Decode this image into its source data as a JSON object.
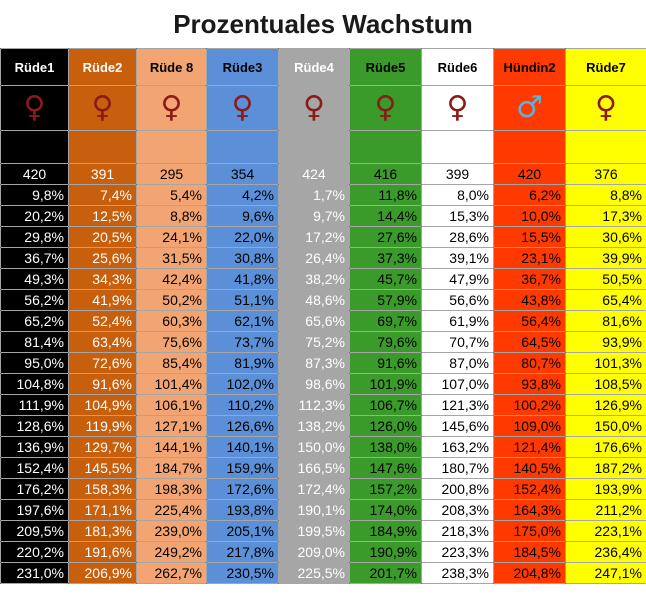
{
  "title": "Prozentuales Wachstum",
  "columns": [
    {
      "name": "Rüde1",
      "symbol": "♀",
      "symbol_icon": "female-symbol-icon",
      "base": "420",
      "bg": "#000000",
      "fg": "#ffffff",
      "symbol_color": "#8b1a1a"
    },
    {
      "name": "Rüde2",
      "symbol": "♀",
      "symbol_icon": "female-symbol-icon",
      "base": "391",
      "bg": "#c75f0c",
      "fg": "#ffffff",
      "symbol_color": "#8b1a1a"
    },
    {
      "name": "Rüde 8",
      "symbol": "♀",
      "symbol_icon": "female-symbol-icon",
      "base": "295",
      "bg": "#f3a473",
      "fg": "#000000",
      "symbol_color": "#8b1a1a"
    },
    {
      "name": "Rüde3",
      "symbol": "♀",
      "symbol_icon": "female-symbol-icon",
      "base": "354",
      "bg": "#5b8fd8",
      "fg": "#000000",
      "symbol_color": "#8b1a1a"
    },
    {
      "name": "Rüde4",
      "symbol": "♀",
      "symbol_icon": "female-symbol-icon",
      "base": "424",
      "bg": "#a6a6a6",
      "fg": "#ffffff",
      "symbol_color": "#8b1a1a"
    },
    {
      "name": "Rüde5",
      "symbol": "♀",
      "symbol_icon": "female-symbol-icon",
      "base": "416",
      "bg": "#3a9a2a",
      "fg": "#000000",
      "symbol_color": "#8b1a1a"
    },
    {
      "name": "Rüde6",
      "symbol": "♀",
      "symbol_icon": "female-symbol-icon",
      "base": "399",
      "bg": "#ffffff",
      "fg": "#000000",
      "symbol_color": "#8b1a1a"
    },
    {
      "name": "Hündin2",
      "symbol": "♂",
      "symbol_icon": "male-symbol-icon",
      "base": "420",
      "bg": "#ff3a00",
      "fg": "#000000",
      "symbol_color": "#5ab4d8"
    },
    {
      "name": "Rüde7",
      "symbol": "♀",
      "symbol_icon": "female-symbol-icon",
      "base": "376",
      "bg": "#ffff00",
      "fg": "#000000",
      "symbol_color": "#8b1a1a"
    }
  ],
  "rows": [
    [
      "9,8%",
      "7,4%",
      "5,4%",
      "4,2%",
      "1,7%",
      "11,8%",
      "8,0%",
      "6,2%",
      "8,8%"
    ],
    [
      "20,2%",
      "12,5%",
      "8,8%",
      "9,6%",
      "9,7%",
      "14,4%",
      "15,3%",
      "10,0%",
      "17,3%"
    ],
    [
      "29,8%",
      "20,5%",
      "24,1%",
      "22,0%",
      "17,2%",
      "27,6%",
      "28,6%",
      "15,5%",
      "30,6%"
    ],
    [
      "36,7%",
      "25,6%",
      "31,5%",
      "30,8%",
      "26,4%",
      "37,3%",
      "39,1%",
      "23,1%",
      "39,9%"
    ],
    [
      "49,3%",
      "34,3%",
      "42,4%",
      "41,8%",
      "38,2%",
      "45,7%",
      "47,9%",
      "36,7%",
      "50,5%"
    ],
    [
      "56,2%",
      "41,9%",
      "50,2%",
      "51,1%",
      "48,6%",
      "57,9%",
      "56,6%",
      "43,8%",
      "65,4%"
    ],
    [
      "65,2%",
      "52,4%",
      "60,3%",
      "62,1%",
      "65,6%",
      "69,7%",
      "61,9%",
      "56,4%",
      "81,6%"
    ],
    [
      "81,4%",
      "63,4%",
      "75,6%",
      "73,7%",
      "75,2%",
      "79,6%",
      "70,7%",
      "64,5%",
      "93,9%"
    ],
    [
      "95,0%",
      "72,6%",
      "85,4%",
      "81,9%",
      "87,3%",
      "91,6%",
      "87,0%",
      "80,7%",
      "101,3%"
    ],
    [
      "104,8%",
      "91,6%",
      "101,4%",
      "102,0%",
      "98,6%",
      "101,9%",
      "107,0%",
      "93,8%",
      "108,5%"
    ],
    [
      "111,9%",
      "104,9%",
      "106,1%",
      "110,2%",
      "112,3%",
      "106,7%",
      "121,3%",
      "100,2%",
      "126,9%"
    ],
    [
      "128,6%",
      "119,9%",
      "127,1%",
      "126,6%",
      "138,2%",
      "126,0%",
      "145,6%",
      "109,0%",
      "150,0%"
    ],
    [
      "136,9%",
      "129,7%",
      "144,1%",
      "140,1%",
      "150,0%",
      "138,0%",
      "163,2%",
      "121,4%",
      "176,6%"
    ],
    [
      "152,4%",
      "145,5%",
      "184,7%",
      "159,9%",
      "166,5%",
      "147,6%",
      "180,7%",
      "140,5%",
      "187,2%"
    ],
    [
      "176,2%",
      "158,3%",
      "198,3%",
      "172,6%",
      "172,4%",
      "157,2%",
      "200,8%",
      "152,4%",
      "193,9%"
    ],
    [
      "197,6%",
      "171,1%",
      "225,4%",
      "193,8%",
      "190,1%",
      "174,0%",
      "208,3%",
      "164,3%",
      "211,2%"
    ],
    [
      "209,5%",
      "181,3%",
      "239,0%",
      "205,1%",
      "199,5%",
      "184,9%",
      "218,3%",
      "175,0%",
      "223,1%"
    ],
    [
      "220,2%",
      "191,6%",
      "249,2%",
      "217,8%",
      "209,0%",
      "190,9%",
      "223,3%",
      "184,5%",
      "236,4%"
    ],
    [
      "231,0%",
      "206,9%",
      "262,7%",
      "230,5%",
      "225,5%",
      "201,7%",
      "238,3%",
      "204,8%",
      "247,1%"
    ]
  ]
}
